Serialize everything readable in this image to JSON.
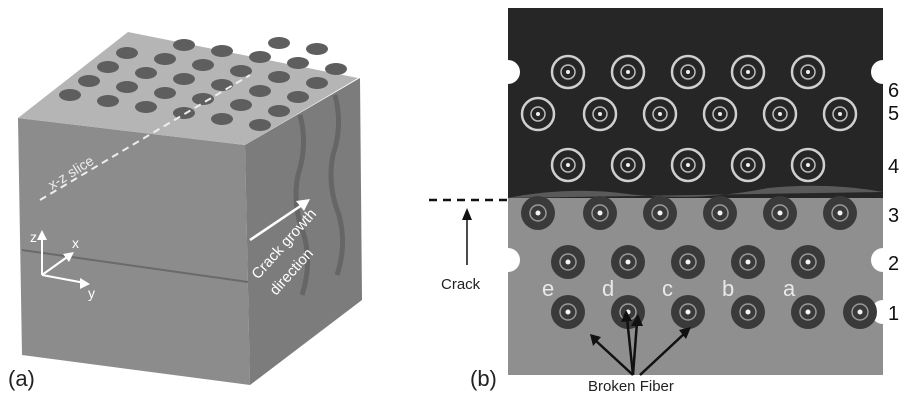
{
  "panel_a": {
    "label": "(a)",
    "slice_label": "x-z slice",
    "arrow_label_line1": "Crack growth",
    "arrow_label_line2": "direction",
    "axes": {
      "z": "z",
      "x": "x",
      "y": "y"
    }
  },
  "panel_b": {
    "label": "(b)",
    "row_numbers": [
      "6",
      "5",
      "4",
      "3",
      "2",
      "1"
    ],
    "fiber_letters": [
      "e",
      "d",
      "c",
      "b",
      "a"
    ],
    "crack_label": "Crack",
    "broken_fiber_label": "Broken Fiber"
  },
  "colors": {
    "specimen_top": "#b8b8b8",
    "specimen_side": "#8a8a8a",
    "slice_dark": "#2a2a2a",
    "slice_light": "#9a9a9a"
  }
}
